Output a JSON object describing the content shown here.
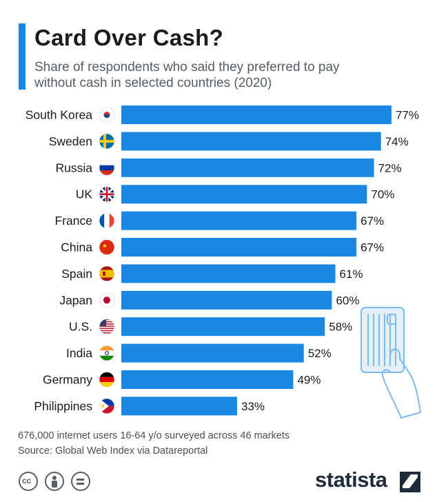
{
  "header": {
    "title": "Card Over Cash?",
    "subtitle": "Share of respondents who said they preferred to pay without cash in selected countries (2020)"
  },
  "footer": {
    "note": "676,000 internet users 16-64 y/o surveyed across 46 markets",
    "source": "Source: Global Web Index via Datareportal",
    "brand": "statista"
  },
  "colors": {
    "bar": "#1a87e3",
    "accent": "#1a87e3",
    "text": "#1b1b1b",
    "card_illustration": "#7fb9ea"
  },
  "icons": [
    "creative-commons-icon",
    "attribution-icon",
    "no-derivatives-icon",
    "statista-logo-icon",
    "credit-card-hand-illustration"
  ],
  "chart_data": {
    "type": "bar",
    "orientation": "horizontal",
    "value_suffix": "%",
    "categories": [
      "South Korea",
      "Sweden",
      "Russia",
      "UK",
      "France",
      "China",
      "Spain",
      "Japan",
      "U.S.",
      "India",
      "Germany",
      "Philippines"
    ],
    "values": [
      77,
      74,
      72,
      70,
      67,
      67,
      61,
      60,
      58,
      52,
      49,
      33
    ],
    "labels": [
      "77%",
      "74%",
      "72%",
      "70%",
      "67%",
      "67%",
      "61%",
      "60%",
      "58%",
      "52%",
      "49%",
      "33%"
    ],
    "flags": [
      "south-korea-flag-icon",
      "sweden-flag-icon",
      "russia-flag-icon",
      "uk-flag-icon",
      "france-flag-icon",
      "china-flag-icon",
      "spain-flag-icon",
      "japan-flag-icon",
      "us-flag-icon",
      "india-flag-icon",
      "germany-flag-icon",
      "philippines-flag-icon"
    ],
    "xlim": [
      0,
      100
    ],
    "grid": false,
    "legend": "none"
  }
}
